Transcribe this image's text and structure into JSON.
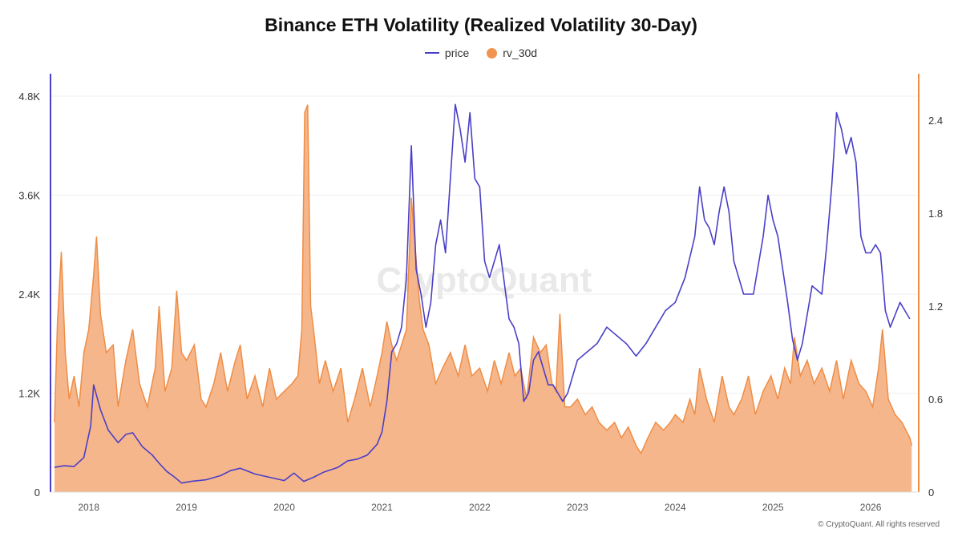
{
  "title": "Binance ETH Volatility (Realized Volatility 30-Day)",
  "legend": {
    "price_label": "price",
    "rv_label": "rv_30d"
  },
  "watermark": "CryptoQuant",
  "copyright": "© CryptoQuant. All rights reserved",
  "colors": {
    "price": "#4a3fc7",
    "rv_fill": "#f5b285",
    "rv_line": "#ef8d45",
    "left_axis": "#4a3fc7",
    "right_axis": "#ef8d45"
  },
  "chart_data": {
    "type": "line",
    "title": "Binance ETH Volatility (Realized Volatility 30-Day)",
    "x_ticks": [
      "2018",
      "2019",
      "2020",
      "2021",
      "2022",
      "2023",
      "2024",
      "2025",
      "2026"
    ],
    "y_left_ticks": [
      "0",
      "1.2K",
      "2.4K",
      "3.6K",
      "4.8K"
    ],
    "y_right_ticks": [
      "0",
      "0.6",
      "1.2",
      "1.8",
      "2.4"
    ],
    "y_left_range": [
      0,
      4800
    ],
    "y_right_range": [
      0,
      2.4
    ],
    "x_range": [
      2017.65,
      2026.45
    ],
    "grid": "horizontal",
    "legend_position": "top-center",
    "series": [
      {
        "name": "price",
        "axis": "left",
        "style": "line",
        "x": [
          2017.65,
          2017.75,
          2017.85,
          2017.95,
          2018.02,
          2018.05,
          2018.12,
          2018.2,
          2018.3,
          2018.38,
          2018.45,
          2018.55,
          2018.65,
          2018.72,
          2018.8,
          2018.88,
          2018.95,
          2019.05,
          2019.2,
          2019.35,
          2019.45,
          2019.55,
          2019.7,
          2019.85,
          2020.0,
          2020.1,
          2020.2,
          2020.3,
          2020.4,
          2020.55,
          2020.65,
          2020.75,
          2020.85,
          2020.95,
          2021.0,
          2021.05,
          2021.1,
          2021.15,
          2021.2,
          2021.25,
          2021.3,
          2021.35,
          2021.4,
          2021.45,
          2021.5,
          2021.55,
          2021.6,
          2021.65,
          2021.7,
          2021.75,
          2021.8,
          2021.85,
          2021.9,
          2021.95,
          2022.0,
          2022.05,
          2022.1,
          2022.2,
          2022.3,
          2022.35,
          2022.4,
          2022.45,
          2022.5,
          2022.55,
          2022.6,
          2022.65,
          2022.7,
          2022.75,
          2022.8,
          2022.85,
          2022.9,
          2023.0,
          2023.1,
          2023.2,
          2023.3,
          2023.4,
          2023.5,
          2023.6,
          2023.7,
          2023.8,
          2023.9,
          2024.0,
          2024.1,
          2024.2,
          2024.25,
          2024.3,
          2024.35,
          2024.4,
          2024.45,
          2024.5,
          2024.55,
          2024.6,
          2024.65,
          2024.7,
          2024.8,
          2024.9,
          2024.95,
          2025.0,
          2025.05,
          2025.1,
          2025.15,
          2025.2,
          2025.25,
          2025.3,
          2025.4,
          2025.5,
          2025.55,
          2025.6,
          2025.65,
          2025.7,
          2025.75,
          2025.8,
          2025.85,
          2025.9,
          2025.95,
          2026.0,
          2026.05,
          2026.1,
          2026.15,
          2026.2,
          2026.3,
          2026.4
        ],
        "y": [
          300,
          320,
          310,
          420,
          800,
          1300,
          1000,
          750,
          600,
          700,
          720,
          550,
          450,
          350,
          250,
          180,
          110,
          130,
          150,
          200,
          260,
          290,
          220,
          180,
          140,
          230,
          130,
          180,
          240,
          300,
          380,
          400,
          450,
          580,
          730,
          1100,
          1700,
          1800,
          2000,
          2600,
          4200,
          2700,
          2400,
          2000,
          2300,
          3000,
          3300,
          2900,
          3800,
          4700,
          4400,
          4000,
          4600,
          3800,
          3700,
          2800,
          2600,
          3000,
          2100,
          2000,
          1800,
          1100,
          1200,
          1600,
          1700,
          1500,
          1300,
          1300,
          1200,
          1100,
          1200,
          1600,
          1700,
          1800,
          2000,
          1900,
          1800,
          1650,
          1800,
          2000,
          2200,
          2300,
          2600,
          3100,
          3700,
          3300,
          3200,
          3000,
          3400,
          3700,
          3400,
          2800,
          2600,
          2400,
          2400,
          3100,
          3600,
          3300,
          3100,
          2700,
          2300,
          1850,
          1600,
          1800,
          2500,
          2400,
          3000,
          3700,
          4600,
          4400,
          4100,
          4300,
          4000,
          3100,
          2900,
          2900,
          3000,
          2900,
          2200,
          2000,
          2300,
          2100
        ],
        "note": ""
      },
      {
        "name": "rv_30d",
        "axis": "right",
        "style": "area",
        "x": [
          2017.65,
          2017.68,
          2017.72,
          2017.76,
          2017.8,
          2017.85,
          2017.9,
          2017.95,
          2018.0,
          2018.05,
          2018.08,
          2018.12,
          2018.18,
          2018.25,
          2018.3,
          2018.38,
          2018.45,
          2018.52,
          2018.6,
          2018.68,
          2018.72,
          2018.78,
          2018.85,
          2018.9,
          2018.95,
          2019.0,
          2019.08,
          2019.15,
          2019.2,
          2019.28,
          2019.35,
          2019.42,
          2019.5,
          2019.55,
          2019.62,
          2019.7,
          2019.78,
          2019.85,
          2019.92,
          2020.0,
          2020.08,
          2020.14,
          2020.18,
          2020.21,
          2020.24,
          2020.27,
          2020.3,
          2020.36,
          2020.42,
          2020.5,
          2020.58,
          2020.65,
          2020.72,
          2020.8,
          2020.88,
          2020.95,
          2021.0,
          2021.05,
          2021.1,
          2021.15,
          2021.2,
          2021.25,
          2021.3,
          2021.35,
          2021.38,
          2021.42,
          2021.48,
          2021.55,
          2021.62,
          2021.7,
          2021.78,
          2021.85,
          2021.92,
          2022.0,
          2022.08,
          2022.15,
          2022.22,
          2022.3,
          2022.36,
          2022.42,
          2022.48,
          2022.55,
          2022.62,
          2022.68,
          2022.74,
          2022.78,
          2022.82,
          2022.87,
          2022.93,
          2023.0,
          2023.08,
          2023.15,
          2023.22,
          2023.3,
          2023.38,
          2023.45,
          2023.52,
          2023.6,
          2023.65,
          2023.72,
          2023.8,
          2023.88,
          2023.95,
          2024.0,
          2024.08,
          2024.15,
          2024.2,
          2024.25,
          2024.32,
          2024.4,
          2024.48,
          2024.55,
          2024.6,
          2024.68,
          2024.75,
          2024.82,
          2024.9,
          2024.98,
          2025.05,
          2025.12,
          2025.18,
          2025.22,
          2025.28,
          2025.35,
          2025.42,
          2025.5,
          2025.58,
          2025.65,
          2025.72,
          2025.8,
          2025.88,
          2025.95,
          2026.02,
          2026.08,
          2026.12,
          2026.18,
          2026.25,
          2026.32,
          2026.4,
          2026.42
        ],
        "y": [
          0.45,
          1.1,
          1.55,
          0.9,
          0.6,
          0.75,
          0.55,
          0.9,
          1.05,
          1.4,
          1.65,
          1.15,
          0.9,
          0.95,
          0.55,
          0.85,
          1.05,
          0.7,
          0.55,
          0.8,
          1.2,
          0.65,
          0.8,
          1.3,
          0.9,
          0.85,
          0.95,
          0.6,
          0.55,
          0.7,
          0.9,
          0.65,
          0.85,
          0.95,
          0.6,
          0.75,
          0.55,
          0.8,
          0.6,
          0.65,
          0.7,
          0.75,
          1.05,
          2.45,
          2.5,
          1.2,
          1.05,
          0.7,
          0.85,
          0.65,
          0.8,
          0.45,
          0.6,
          0.8,
          0.55,
          0.75,
          0.9,
          1.1,
          0.95,
          0.85,
          0.95,
          1.05,
          1.9,
          1.5,
          1.25,
          1.05,
          0.95,
          0.7,
          0.8,
          0.9,
          0.75,
          0.95,
          0.75,
          0.8,
          0.65,
          0.85,
          0.7,
          0.9,
          0.75,
          0.8,
          0.6,
          1.0,
          0.9,
          0.95,
          0.7,
          0.65,
          1.15,
          0.55,
          0.55,
          0.6,
          0.5,
          0.55,
          0.45,
          0.4,
          0.45,
          0.35,
          0.42,
          0.3,
          0.25,
          0.35,
          0.45,
          0.4,
          0.45,
          0.5,
          0.45,
          0.6,
          0.5,
          0.8,
          0.6,
          0.45,
          0.75,
          0.55,
          0.5,
          0.6,
          0.75,
          0.5,
          0.65,
          0.75,
          0.6,
          0.8,
          0.7,
          1.0,
          0.75,
          0.85,
          0.7,
          0.8,
          0.65,
          0.85,
          0.6,
          0.85,
          0.7,
          0.65,
          0.55,
          0.8,
          1.05,
          0.6,
          0.5,
          0.45,
          0.35,
          0.3
        ]
      }
    ]
  }
}
